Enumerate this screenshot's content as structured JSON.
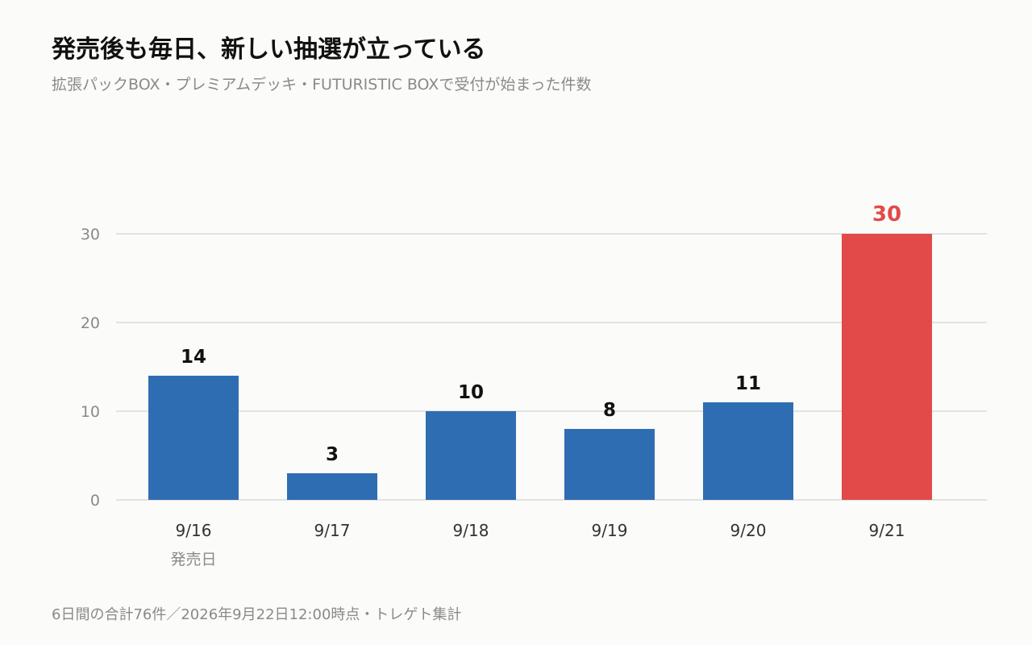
{
  "header": {
    "title": "発売後も毎日、新しい抽選が立っている",
    "subtitle": "拡張パックBOX・プレミアムデッキ・FUTURISTIC BOXで受付が始まった件数"
  },
  "footer": {
    "note": "6日間の合計76件／2026年9月22日12:00時点・トレゲト集計"
  },
  "colors": {
    "bar": "#2f6db3",
    "highlight": "#e24a4a",
    "grid": "#d9d9d9",
    "tick": "#8a8a8a",
    "value_label": "#111111"
  },
  "chart_data": {
    "type": "bar",
    "title": "発売後も毎日、新しい抽選が立っている",
    "subtitle": "拡張パックBOX・プレミアムデッキ・FUTURISTIC BOXで受付が始まった件数",
    "categories": [
      "9/16",
      "9/17",
      "9/18",
      "9/19",
      "9/20",
      "9/21"
    ],
    "category_sublabels": [
      "発売日",
      "",
      "",
      "",
      "",
      ""
    ],
    "values": [
      14,
      3,
      10,
      8,
      11,
      30
    ],
    "highlight_index": 5,
    "ylim": [
      0,
      30
    ],
    "yticks": [
      0,
      10,
      20,
      30
    ],
    "grid": true,
    "xlabel": "",
    "ylabel": ""
  }
}
